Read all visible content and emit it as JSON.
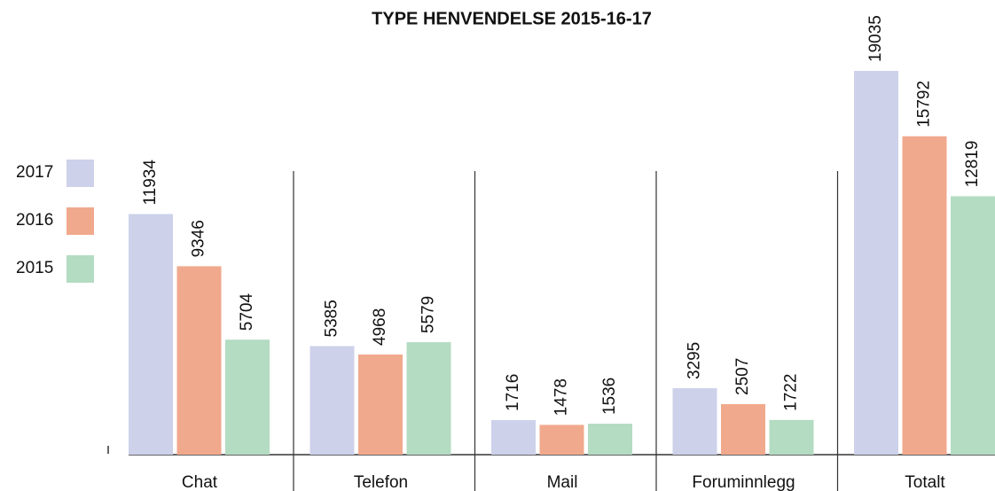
{
  "chart_data": {
    "type": "bar",
    "title": "TYPE HENVENDELSE 2015-16-17",
    "categories": [
      "Chat",
      "Telefon",
      "Mail",
      "Foruminnlegg",
      "Totalt"
    ],
    "series": [
      {
        "name": "2017",
        "color": "#cdd1ea",
        "values": [
          11934,
          5385,
          1716,
          3295,
          19035
        ]
      },
      {
        "name": "2016",
        "color": "#f0a98c",
        "values": [
          9346,
          4968,
          1478,
          2507,
          15792
        ]
      },
      {
        "name": "2015",
        "color": "#b3dcc2",
        "values": [
          5704,
          5579,
          1536,
          1722,
          12819
        ]
      }
    ]
  }
}
